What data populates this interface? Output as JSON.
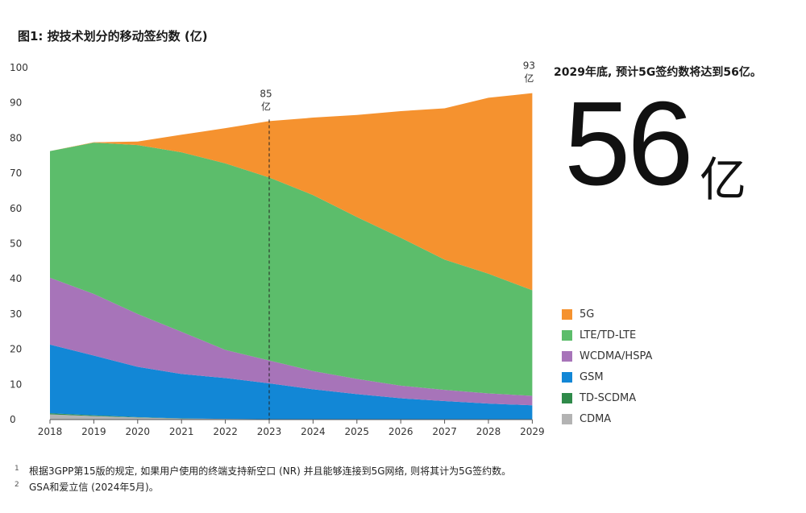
{
  "title": "图1: 按技术划分的移动签约数 (亿)",
  "headline": "2029年底, 预计5G签约数将达到56亿。",
  "big_number": "56",
  "big_unit": "亿",
  "chart_data": {
    "type": "area",
    "stacked": true,
    "title": "图1: 按技术划分的移动签约数 (亿)",
    "x": [
      "2018",
      "2019",
      "2020",
      "2021",
      "2022",
      "2023",
      "2024",
      "2025",
      "2026",
      "2027",
      "2028",
      "2029"
    ],
    "ylim": [
      0,
      100
    ],
    "yticks": [
      "0",
      "10",
      "20",
      "30",
      "40",
      "50",
      "60",
      "70",
      "80",
      "90",
      "100"
    ],
    "grid": false,
    "legend_position": "right",
    "series": [
      {
        "name": "CDMA",
        "color": "#b3b3b3",
        "values": [
          1.5,
          1.0,
          0.6,
          0.3,
          0.2,
          0.1,
          0.1,
          0.05,
          0.05,
          0.05,
          0.05,
          0.05
        ]
      },
      {
        "name": "TD-SCDMA",
        "color": "#2f8a4a",
        "values": [
          0.3,
          0.2,
          0.1,
          0.05,
          0.0,
          0.0,
          0.0,
          0.0,
          0.0,
          0.0,
          0.0,
          0.0
        ]
      },
      {
        "name": "GSM",
        "color": "#1287d6",
        "values": [
          19.5,
          17.0,
          14.3,
          12.6,
          11.6,
          10.2,
          8.5,
          7.2,
          6.0,
          5.2,
          4.5,
          4.0
        ]
      },
      {
        "name": "WCDMA/HSPA",
        "color": "#a774b9",
        "values": [
          19.0,
          17.5,
          15.0,
          12.0,
          8.0,
          6.5,
          5.2,
          4.3,
          3.6,
          3.2,
          2.9,
          2.7
        ]
      },
      {
        "name": "LTE/TD-LTE",
        "color": "#5cbd6b",
        "values": [
          36.0,
          43.0,
          48.0,
          51.0,
          53.0,
          52.0,
          50.0,
          46.0,
          42.0,
          37.0,
          34.0,
          30.0
        ]
      },
      {
        "name": "5G",
        "color": "#f5922f",
        "values": [
          0.0,
          0.1,
          1.0,
          5.0,
          10.0,
          16.0,
          22.0,
          29.0,
          36.0,
          43.0,
          50.0,
          56.0
        ]
      }
    ],
    "annotations": [
      {
        "x": "2023",
        "value": "85",
        "unit": "亿",
        "dashed_line": true
      },
      {
        "x": "2029",
        "value": "93",
        "unit": "亿",
        "dashed_line": false
      }
    ]
  },
  "legend": [
    {
      "label": "5G",
      "color": "#f5922f"
    },
    {
      "label": "LTE/TD-LTE",
      "color": "#5cbd6b"
    },
    {
      "label": "WCDMA/HSPA",
      "color": "#a774b9"
    },
    {
      "label": "GSM",
      "color": "#1287d6"
    },
    {
      "label": "TD-SCDMA",
      "color": "#2f8a4a"
    },
    {
      "label": "CDMA",
      "color": "#b3b3b3"
    }
  ],
  "footnotes": [
    {
      "num": "1",
      "text": "根据3GPP第15版的规定, 如果用户使用的终端支持新空口 (NR) 并且能够连接到5G网络, 则将其计为5G签约数。"
    },
    {
      "num": "2",
      "text": "GSA和爱立信 (2024年5月)。"
    }
  ]
}
